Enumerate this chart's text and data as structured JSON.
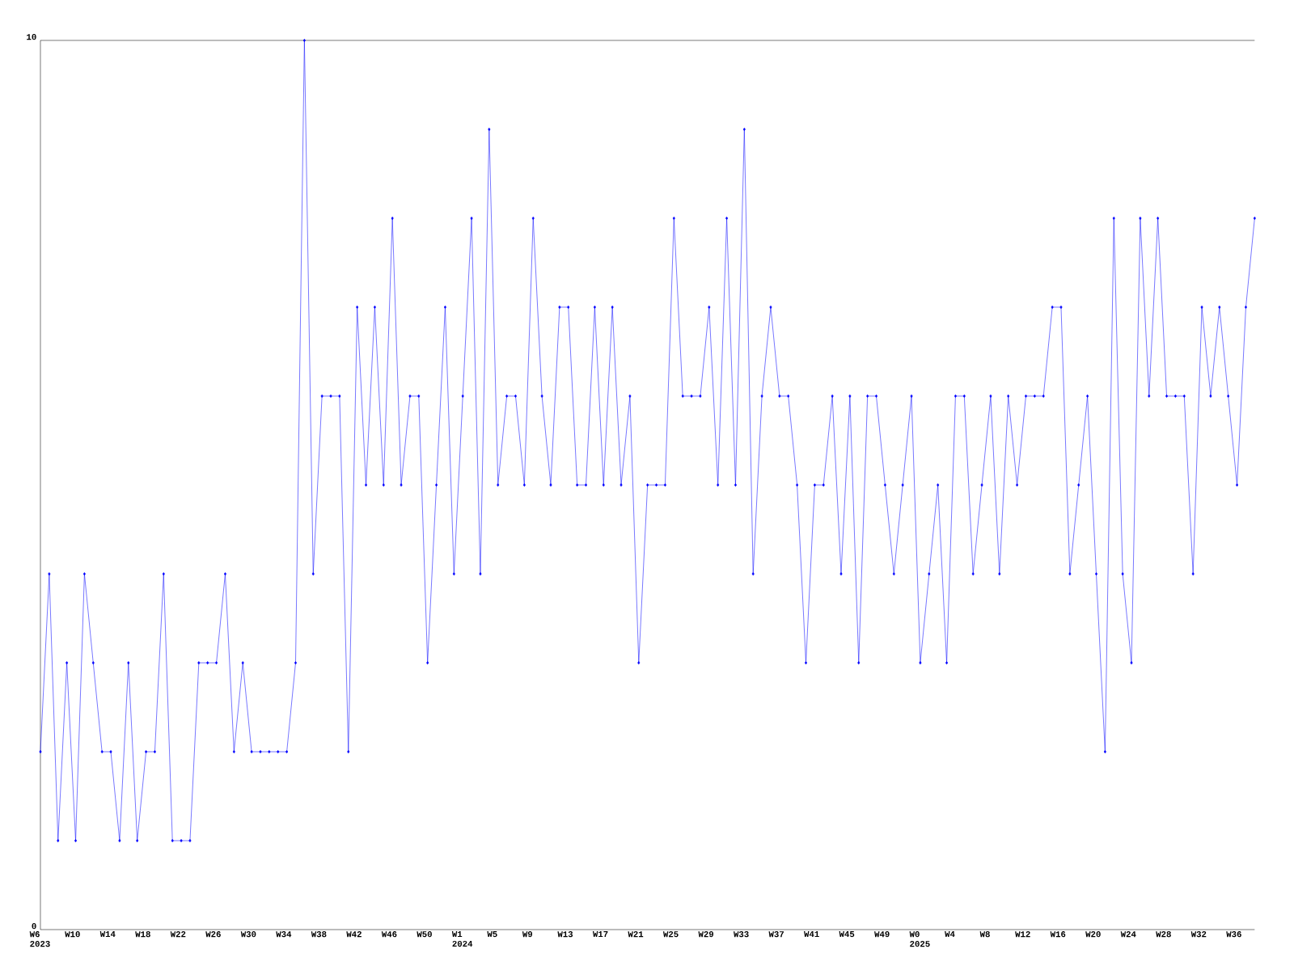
{
  "chart_data": {
    "type": "line",
    "categories": [
      "W6 2023",
      null,
      null,
      null,
      "W10",
      null,
      null,
      null,
      "W14",
      null,
      null,
      null,
      "W18",
      null,
      null,
      null,
      "W22",
      null,
      null,
      null,
      "W26",
      null,
      null,
      null,
      "W30",
      null,
      null,
      null,
      "W34",
      null,
      null,
      null,
      "W38",
      null,
      null,
      null,
      "W42",
      null,
      null,
      null,
      "W46",
      null,
      null,
      null,
      "W50",
      null,
      null,
      null,
      "W1 2024",
      null,
      null,
      null,
      "W5",
      null,
      null,
      null,
      "W9",
      null,
      null,
      null,
      "W13",
      null,
      null,
      null,
      "W17",
      null,
      null,
      null,
      "W21",
      null,
      null,
      null,
      "W25",
      null,
      null,
      null,
      "W29",
      null,
      null,
      null,
      "W33",
      null,
      null,
      null,
      "W37",
      null,
      null,
      null,
      "W41",
      null,
      null,
      null,
      "W45",
      null,
      null,
      null,
      "W49",
      null,
      null,
      null,
      "W0 2025",
      null,
      null,
      null,
      "W4",
      null,
      null,
      null,
      "W8",
      null,
      null,
      null,
      "W12",
      null,
      null,
      null,
      "W16",
      null,
      null,
      null,
      "W20",
      null,
      null,
      null,
      "W24",
      null,
      null,
      null,
      "W28",
      null,
      null,
      null,
      "W32",
      null,
      null,
      null,
      "W36",
      null,
      null
    ],
    "values": [
      2,
      4,
      1,
      3,
      1,
      4,
      3,
      2,
      2,
      1,
      3,
      1,
      2,
      2,
      4,
      1,
      1,
      1,
      3,
      3,
      3,
      4,
      2,
      3,
      2,
      2,
      2,
      2,
      2,
      3,
      10,
      4,
      6,
      6,
      6,
      2,
      7,
      5,
      7,
      5,
      8,
      5,
      6,
      6,
      3,
      5,
      7,
      4,
      6,
      8,
      4,
      9,
      5,
      6,
      6,
      5,
      8,
      6,
      5,
      7,
      7,
      5,
      5,
      7,
      5,
      7,
      5,
      6,
      3,
      5,
      5,
      5,
      8,
      6,
      6,
      6,
      7,
      5,
      8,
      5,
      9,
      4,
      6,
      7,
      6,
      6,
      5,
      3,
      5,
      5,
      6,
      4,
      6,
      3,
      6,
      6,
      5,
      4,
      5,
      6,
      3,
      4,
      5,
      3,
      6,
      6,
      4,
      5,
      6,
      4,
      6,
      5,
      6,
      6,
      6,
      7,
      7,
      4,
      5,
      6,
      4,
      2,
      8,
      4,
      3,
      8,
      6,
      8,
      6,
      6,
      6,
      4,
      7,
      6,
      7,
      6,
      5,
      7,
      8
    ],
    "color": "#0000ff",
    "marker": "diamond",
    "grid": false,
    "ylim": [
      0,
      10
    ],
    "yticks": [
      0,
      10
    ]
  }
}
